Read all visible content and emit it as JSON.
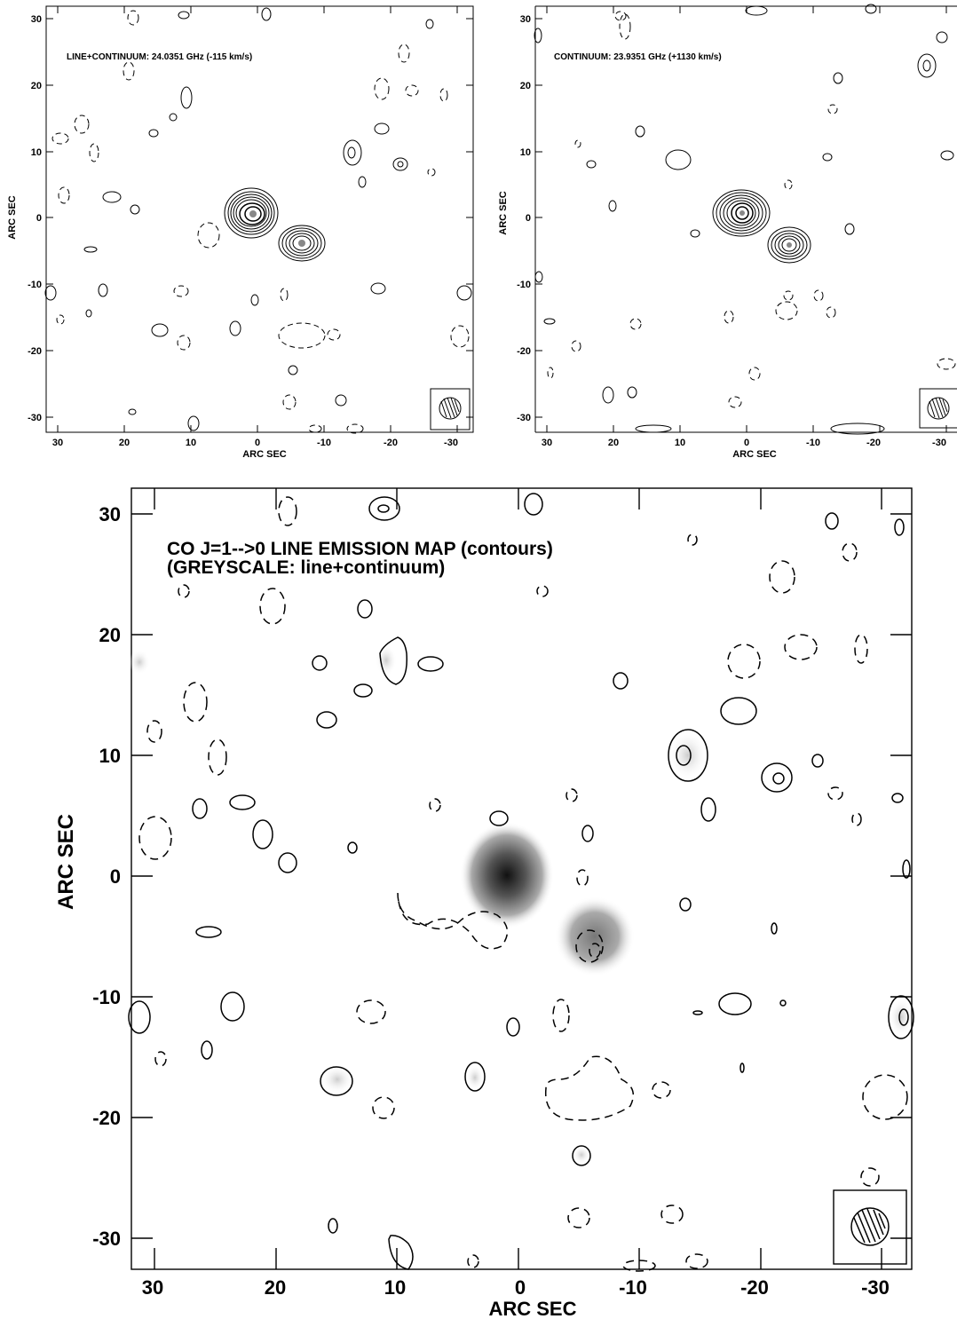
{
  "panels": {
    "top_left": {
      "label": "LINE+CONTINUUM: 24.0351 GHz (-115 km/s)",
      "xlabel": "ARC SEC",
      "ylabel": "ARC SEC"
    },
    "top_right": {
      "label": "CONTINUUM: 23.9351 GHz (+1130 km/s)",
      "xlabel": "ARC SEC",
      "ylabel": "ARC SEC"
    },
    "bottom": {
      "title_line1": "CO J=1-->0 LINE EMISSION MAP (contours)",
      "title_line2": "(GREYSCALE: line+continuum)",
      "xlabel": "ARC SEC",
      "ylabel": "ARC SEC"
    }
  },
  "x_ticks": [
    "30",
    "20",
    "10",
    "0",
    "-10",
    "-20",
    "-30"
  ],
  "y_ticks": [
    "30",
    "20",
    "10",
    "0",
    "-10",
    "-20",
    "-30"
  ],
  "colors": {
    "contour": "#000000",
    "background": "#ffffff",
    "greyscale_peak": "#111111"
  }
}
